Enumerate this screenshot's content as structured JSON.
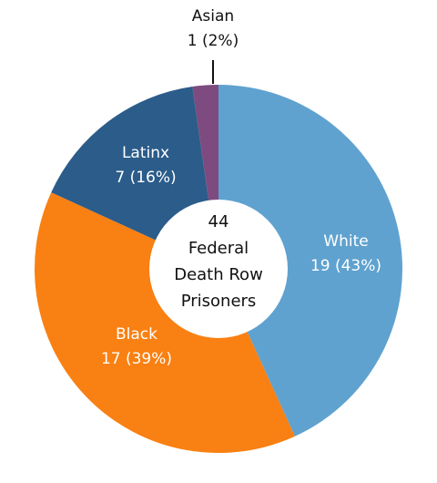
{
  "chart_data": {
    "type": "pie",
    "donut": true,
    "center_label": [
      "44",
      "Federal",
      "Death Row",
      "Prisoners"
    ],
    "total": 44,
    "categories": [
      "White",
      "Black",
      "Latinx",
      "Asian"
    ],
    "values": [
      19,
      17,
      7,
      1
    ],
    "percent_labels": [
      "19 (43%)",
      "17 (39%)",
      "7 (16%)",
      "1 (2%)"
    ],
    "colors": [
      "#5fa2cf",
      "#f98012",
      "#2b5c8a",
      "#7d4b80"
    ],
    "label_colors": [
      "#ffffff",
      "#ffffff",
      "#ffffff",
      "#111111"
    ],
    "start": "12 o'clock",
    "direction": "clockwise",
    "legend": "none"
  }
}
